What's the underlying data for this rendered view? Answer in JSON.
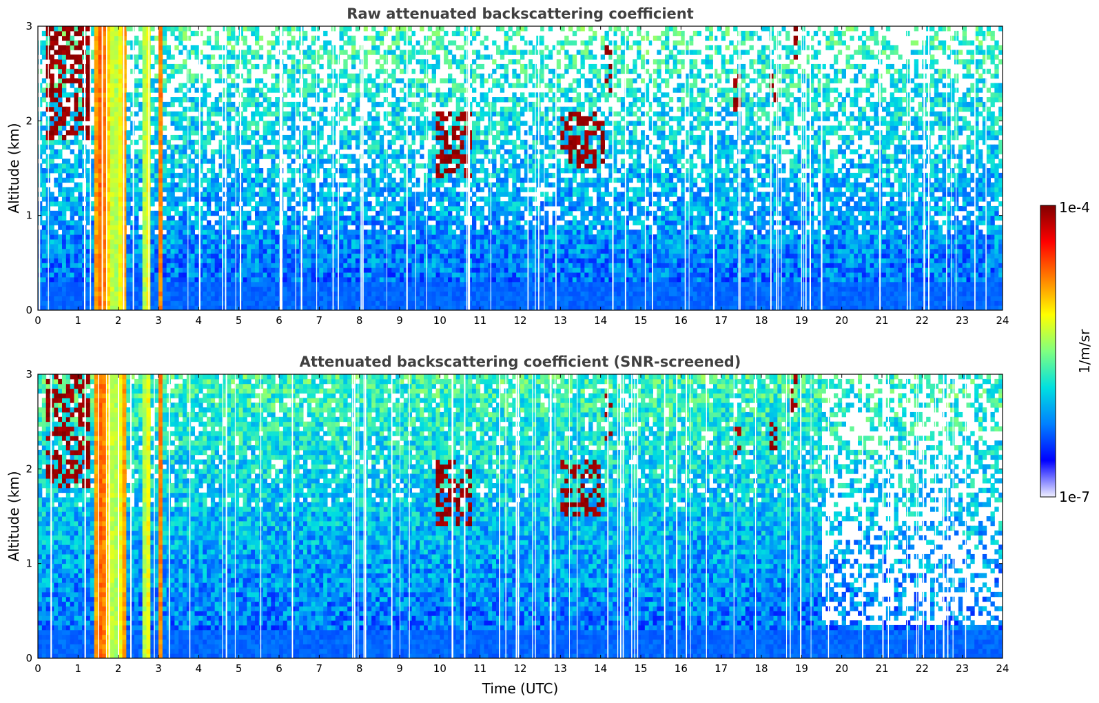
{
  "chart_data": [
    {
      "type": "heatmap",
      "title": "Raw attenuated backscattering coefficient",
      "xlabel": "",
      "ylabel": "Altitude (km)",
      "xlim": [
        0,
        24
      ],
      "ylim": [
        0,
        3
      ],
      "xticks": [
        "0",
        "1",
        "2",
        "3",
        "4",
        "5",
        "6",
        "7",
        "8",
        "9",
        "10",
        "11",
        "12",
        "13",
        "14",
        "15",
        "16",
        "17",
        "18",
        "19",
        "20",
        "21",
        "22",
        "23",
        "24"
      ],
      "yticks": [
        "0",
        "1",
        "2",
        "3"
      ],
      "screened": false,
      "features": {
        "dense_layer_hours": [
          [
            1.4,
            2.2
          ],
          [
            2.65,
            2.75
          ],
          [
            2.95,
            3.05
          ]
        ],
        "cloud_patches": [
          {
            "hours": [
              9.9,
              10.8
            ],
            "altitude_km": [
              1.4,
              2.1
            ]
          },
          {
            "hours": [
              13.0,
              14.1
            ],
            "altitude_km": [
              1.5,
              2.1
            ]
          },
          {
            "hours": [
              14.1,
              14.3
            ],
            "altitude_km": [
              2.3,
              2.8
            ]
          },
          {
            "hours": [
              0.2,
              1.3
            ],
            "altitude_km": [
              1.8,
              3.0
            ]
          },
          {
            "hours": [
              17.3,
              17.5
            ],
            "altitude_km": [
              2.1,
              2.5
            ]
          },
          {
            "hours": [
              18.2,
              18.4
            ],
            "altitude_km": [
              2.2,
              2.5
            ]
          },
          {
            "hours": [
              18.75,
              18.9
            ],
            "altitude_km": [
              2.6,
              3.0
            ]
          }
        ]
      }
    },
    {
      "type": "heatmap",
      "title": "Attenuated backscattering coefficient (SNR-screened)",
      "xlabel": "Time (UTC)",
      "ylabel": "Altitude (km)",
      "xlim": [
        0,
        24
      ],
      "ylim": [
        0,
        3
      ],
      "xticks": [
        "0",
        "1",
        "2",
        "3",
        "4",
        "5",
        "6",
        "7",
        "8",
        "9",
        "10",
        "11",
        "12",
        "13",
        "14",
        "15",
        "16",
        "17",
        "18",
        "19",
        "20",
        "21",
        "22",
        "23",
        "24"
      ],
      "yticks": [
        "0",
        "1",
        "2",
        "3"
      ],
      "screened": true,
      "features": {
        "dense_layer_hours": [
          [
            1.4,
            2.2
          ],
          [
            2.65,
            2.75
          ],
          [
            2.95,
            3.05
          ]
        ],
        "cloud_patches": [
          {
            "hours": [
              9.9,
              10.8
            ],
            "altitude_km": [
              1.4,
              2.1
            ]
          },
          {
            "hours": [
              13.0,
              14.1
            ],
            "altitude_km": [
              1.5,
              2.1
            ]
          },
          {
            "hours": [
              14.1,
              14.3
            ],
            "altitude_km": [
              2.3,
              2.8
            ]
          },
          {
            "hours": [
              0.2,
              1.3
            ],
            "altitude_km": [
              1.8,
              3.0
            ]
          },
          {
            "hours": [
              17.3,
              17.5
            ],
            "altitude_km": [
              2.1,
              2.5
            ]
          },
          {
            "hours": [
              18.2,
              18.4
            ],
            "altitude_km": [
              2.2,
              2.5
            ]
          },
          {
            "hours": [
              18.75,
              18.9
            ],
            "altitude_km": [
              2.6,
              3.0
            ]
          }
        ]
      }
    }
  ],
  "colorbar": {
    "label": "1/m/sr",
    "max_label": "1e-4",
    "min_label": "1e-7",
    "scale": "log",
    "range": [
      1e-07,
      0.0001
    ],
    "colormap": [
      "#f0f0ff",
      "#0000ff",
      "#0080ff",
      "#00e0e0",
      "#80ff80",
      "#ffff00",
      "#ff8000",
      "#ff0000",
      "#800000"
    ]
  }
}
